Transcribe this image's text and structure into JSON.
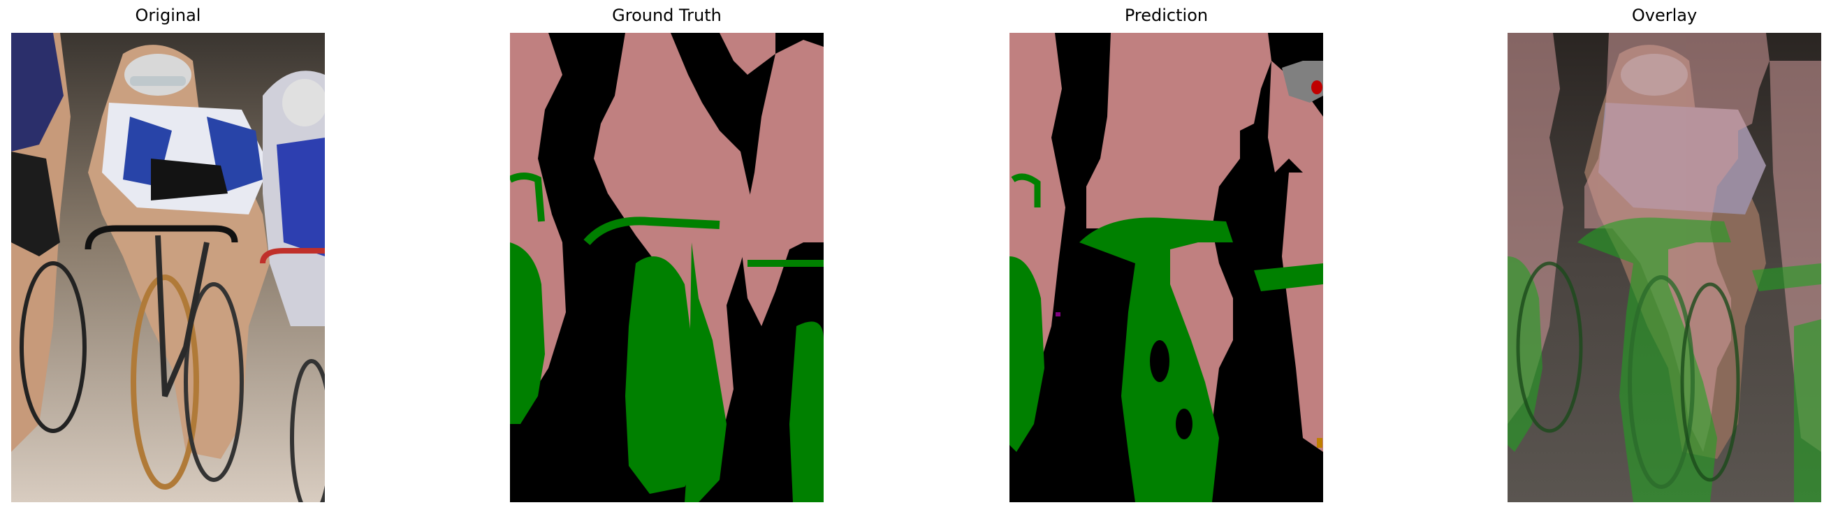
{
  "figure": {
    "panels": [
      {
        "title": "Original"
      },
      {
        "title": "Ground Truth"
      },
      {
        "title": "Prediction"
      },
      {
        "title": "Overlay"
      }
    ]
  },
  "colors": {
    "background": "#000000",
    "person": "#c08080",
    "bicycle": "#008000",
    "other_gray": "#808080",
    "other_red": "#c00000",
    "other_purple": "#800080"
  }
}
